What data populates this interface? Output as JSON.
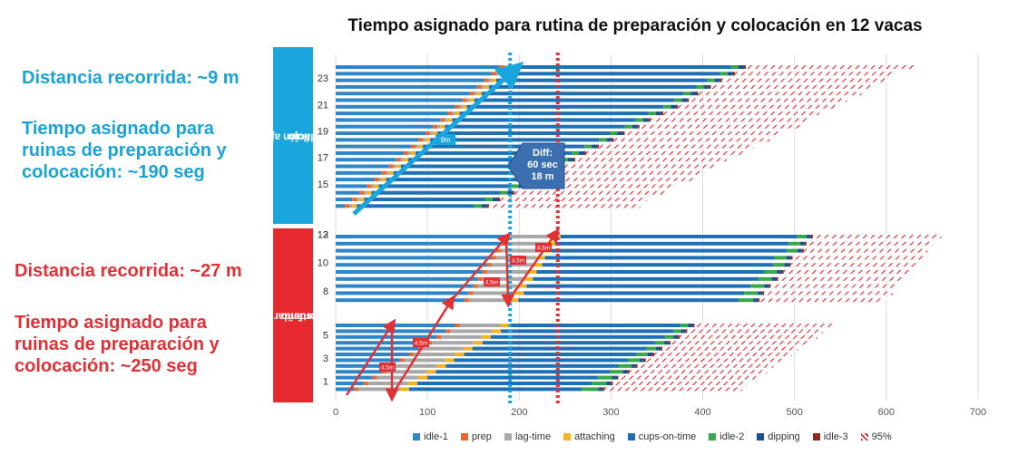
{
  "chart_data": {
    "type": "bar",
    "orientation": "horizontal-stacked",
    "title": "Tiempo asignado para rutina de preparación y colocación en 12 vacas",
    "xlabel": "",
    "ylabel": "",
    "xlim": [
      0,
      700
    ],
    "xticks": [
      0,
      100,
      200,
      300,
      400,
      500,
      600,
      700
    ],
    "grid": true,
    "legend_position": "bottom",
    "ytick_labels_top": [
      "23",
      "21",
      "19",
      "17",
      "15",
      "13"
    ],
    "ytick_labels_mid": [
      "12",
      "10",
      "8"
    ],
    "ytick_labels_bot": [
      "5",
      "3",
      "1"
    ],
    "groups": [
      {
        "label": "Estimulación ajustada al flujo",
        "color": "#1aa6dc"
      },
      {
        "label": "Rutina estándar en sala de ordeño",
        "color": "#e5292e"
      }
    ],
    "series_names": [
      "idle-1",
      "prep",
      "lag-time",
      "attaching",
      "cups-on-time",
      "idle-2",
      "dipping",
      "idle-3",
      "95%"
    ],
    "series_colors": [
      "#2e86c8",
      "#e8672a",
      "#a8a8a8",
      "#f5b324",
      "#1f6fb5",
      "#37a84a",
      "#1d4f91",
      "#8b2b1c",
      "#e0303a"
    ],
    "rows": [
      {
        "group": 0,
        "values": [
          178,
          5,
          3,
          5,
          240,
          8,
          6,
          2,
          185
        ]
      },
      {
        "group": 0,
        "values": [
          170,
          5,
          3,
          5,
          236,
          8,
          6,
          2,
          174
        ]
      },
      {
        "group": 0,
        "values": [
          162,
          5,
          3,
          5,
          230,
          8,
          6,
          2,
          180
        ]
      },
      {
        "group": 0,
        "values": [
          154,
          5,
          3,
          5,
          226,
          8,
          6,
          2,
          176
        ]
      },
      {
        "group": 0,
        "values": [
          146,
          5,
          3,
          5,
          220,
          8,
          6,
          2,
          178
        ]
      },
      {
        "group": 0,
        "values": [
          138,
          5,
          3,
          5,
          218,
          8,
          6,
          2,
          172
        ]
      },
      {
        "group": 0,
        "values": [
          130,
          5,
          3,
          5,
          214,
          8,
          6,
          2,
          175
        ]
      },
      {
        "group": 0,
        "values": [
          122,
          5,
          3,
          5,
          206,
          8,
          6,
          2,
          170
        ]
      },
      {
        "group": 0,
        "values": [
          114,
          5,
          3,
          5,
          200,
          8,
          6,
          2,
          172
        ]
      },
      {
        "group": 0,
        "values": [
          106,
          5,
          3,
          5,
          196,
          8,
          6,
          2,
          175
        ]
      },
      {
        "group": 0,
        "values": [
          98,
          5,
          3,
          5,
          188,
          8,
          6,
          2,
          168
        ]
      },
      {
        "group": 0,
        "values": [
          90,
          5,
          3,
          5,
          184,
          8,
          6,
          2,
          170
        ]
      },
      {
        "group": 0,
        "values": [
          82,
          5,
          3,
          5,
          176,
          8,
          6,
          2,
          168
        ]
      },
      {
        "group": 0,
        "values": [
          74,
          5,
          3,
          5,
          170,
          8,
          6,
          2,
          172
        ]
      },
      {
        "group": 0,
        "values": [
          66,
          5,
          3,
          5,
          166,
          8,
          6,
          2,
          165
        ]
      },
      {
        "group": 0,
        "values": [
          58,
          5,
          3,
          5,
          160,
          8,
          6,
          2,
          168
        ]
      },
      {
        "group": 0,
        "values": [
          50,
          5,
          3,
          5,
          154,
          8,
          6,
          2,
          166
        ]
      },
      {
        "group": 0,
        "values": [
          42,
          5,
          3,
          5,
          150,
          8,
          6,
          2,
          170
        ]
      },
      {
        "group": 0,
        "values": [
          34,
          5,
          3,
          5,
          144,
          8,
          6,
          2,
          162
        ]
      },
      {
        "group": 0,
        "values": [
          26,
          5,
          3,
          5,
          140,
          8,
          6,
          2,
          165
        ]
      },
      {
        "group": 0,
        "values": [
          18,
          5,
          3,
          5,
          132,
          8,
          6,
          2,
          160
        ]
      },
      {
        "group": 0,
        "values": [
          10,
          5,
          3,
          5,
          128,
          8,
          6,
          2,
          165
        ]
      },
      {
        "group": 1,
        "values": [
          185,
          5,
          45,
          10,
          258,
          10,
          5,
          2,
          140
        ]
      },
      {
        "group": 1,
        "values": [
          180,
          5,
          44,
          10,
          255,
          12,
          5,
          2,
          138
        ]
      },
      {
        "group": 1,
        "values": [
          175,
          5,
          45,
          10,
          256,
          12,
          5,
          2,
          135
        ]
      },
      {
        "group": 1,
        "values": [
          170,
          5,
          43,
          10,
          250,
          13,
          5,
          2,
          142
        ]
      },
      {
        "group": 1,
        "values": [
          165,
          5,
          45,
          10,
          252,
          12,
          5,
          2,
          138
        ]
      },
      {
        "group": 1,
        "values": [
          160,
          5,
          44,
          10,
          248,
          14,
          5,
          2,
          140
        ]
      },
      {
        "group": 1,
        "values": [
          155,
          5,
          45,
          10,
          246,
          14,
          5,
          2,
          136
        ]
      },
      {
        "group": 1,
        "values": [
          150,
          5,
          43,
          10,
          244,
          15,
          5,
          2,
          138
        ]
      },
      {
        "group": 1,
        "values": [
          145,
          5,
          45,
          10,
          240,
          15,
          5,
          2,
          140
        ]
      },
      {
        "group": 1,
        "values": [
          140,
          5,
          44,
          10,
          240,
          16,
          5,
          2,
          135
        ]
      },
      {
        "group": 1,
        "values": [
          130,
          5,
          45,
          10,
          186,
          8,
          5,
          2,
          150
        ]
      },
      {
        "group": 1,
        "values": [
          120,
          5,
          45,
          10,
          188,
          8,
          5,
          2,
          148
        ]
      },
      {
        "group": 1,
        "values": [
          110,
          5,
          44,
          10,
          190,
          9,
          5,
          2,
          150
        ]
      },
      {
        "group": 1,
        "values": [
          100,
          5,
          45,
          10,
          188,
          10,
          5,
          2,
          150
        ]
      },
      {
        "group": 1,
        "values": [
          90,
          5,
          44,
          10,
          190,
          10,
          5,
          2,
          148
        ]
      },
      {
        "group": 1,
        "values": [
          80,
          5,
          45,
          10,
          188,
          12,
          5,
          2,
          150
        ]
      },
      {
        "group": 1,
        "values": [
          70,
          5,
          44,
          10,
          190,
          12,
          5,
          2,
          148
        ]
      },
      {
        "group": 1,
        "values": [
          60,
          5,
          45,
          10,
          188,
          14,
          5,
          2,
          148
        ]
      },
      {
        "group": 1,
        "values": [
          50,
          5,
          44,
          10,
          190,
          14,
          5,
          2,
          150
        ]
      },
      {
        "group": 1,
        "values": [
          40,
          5,
          45,
          10,
          186,
          15,
          5,
          2,
          150
        ]
      },
      {
        "group": 1,
        "values": [
          30,
          5,
          44,
          10,
          190,
          16,
          5,
          2,
          146
        ]
      },
      {
        "group": 1,
        "values": [
          20,
          5,
          45,
          10,
          188,
          18,
          5,
          2,
          150
        ]
      }
    ],
    "reference_lines": [
      {
        "x": 190,
        "color": "#1aa6dc",
        "style": "dotted"
      },
      {
        "x": 242,
        "color": "#e03137",
        "style": "dotted"
      }
    ],
    "annotations": {
      "diff": [
        "Diff:",
        "60 sec",
        "18 m"
      ],
      "blue_arrow_label": "9m",
      "red_arrow_label": "4.5m"
    }
  },
  "callouts": {
    "blue_distance": "Distancia recorrida: ~9 m",
    "blue_time_1": "Tiempo asignado para",
    "blue_time_2": "ruinas de preparación y",
    "blue_time_3": "colocación: ~190 seg",
    "red_distance": "Distancia recorrida: ~27 m",
    "red_time_1": "Tiempo asignado para",
    "red_time_2": "ruinas de preparación y",
    "red_time_3": "colocación: ~250 seg"
  },
  "group_labels": {
    "blue": [
      "Estimulación ajustada al",
      "flujo"
    ],
    "red": [
      "Rutina estándar en sala de",
      "ordeño"
    ]
  },
  "legend": [
    {
      "name": "idle-1",
      "color": "#2e86c8"
    },
    {
      "name": "prep",
      "color": "#e8672a"
    },
    {
      "name": "lag-time",
      "color": "#a8a8a8"
    },
    {
      "name": "attaching",
      "color": "#f5b324"
    },
    {
      "name": "cups-on-time",
      "color": "#1f6fb5"
    },
    {
      "name": "idle-2",
      "color": "#37a84a"
    },
    {
      "name": "dipping",
      "color": "#1d4f91"
    },
    {
      "name": "idle-3",
      "color": "#8b2b1c"
    },
    {
      "name": "95%",
      "color": "#e0303a"
    }
  ]
}
